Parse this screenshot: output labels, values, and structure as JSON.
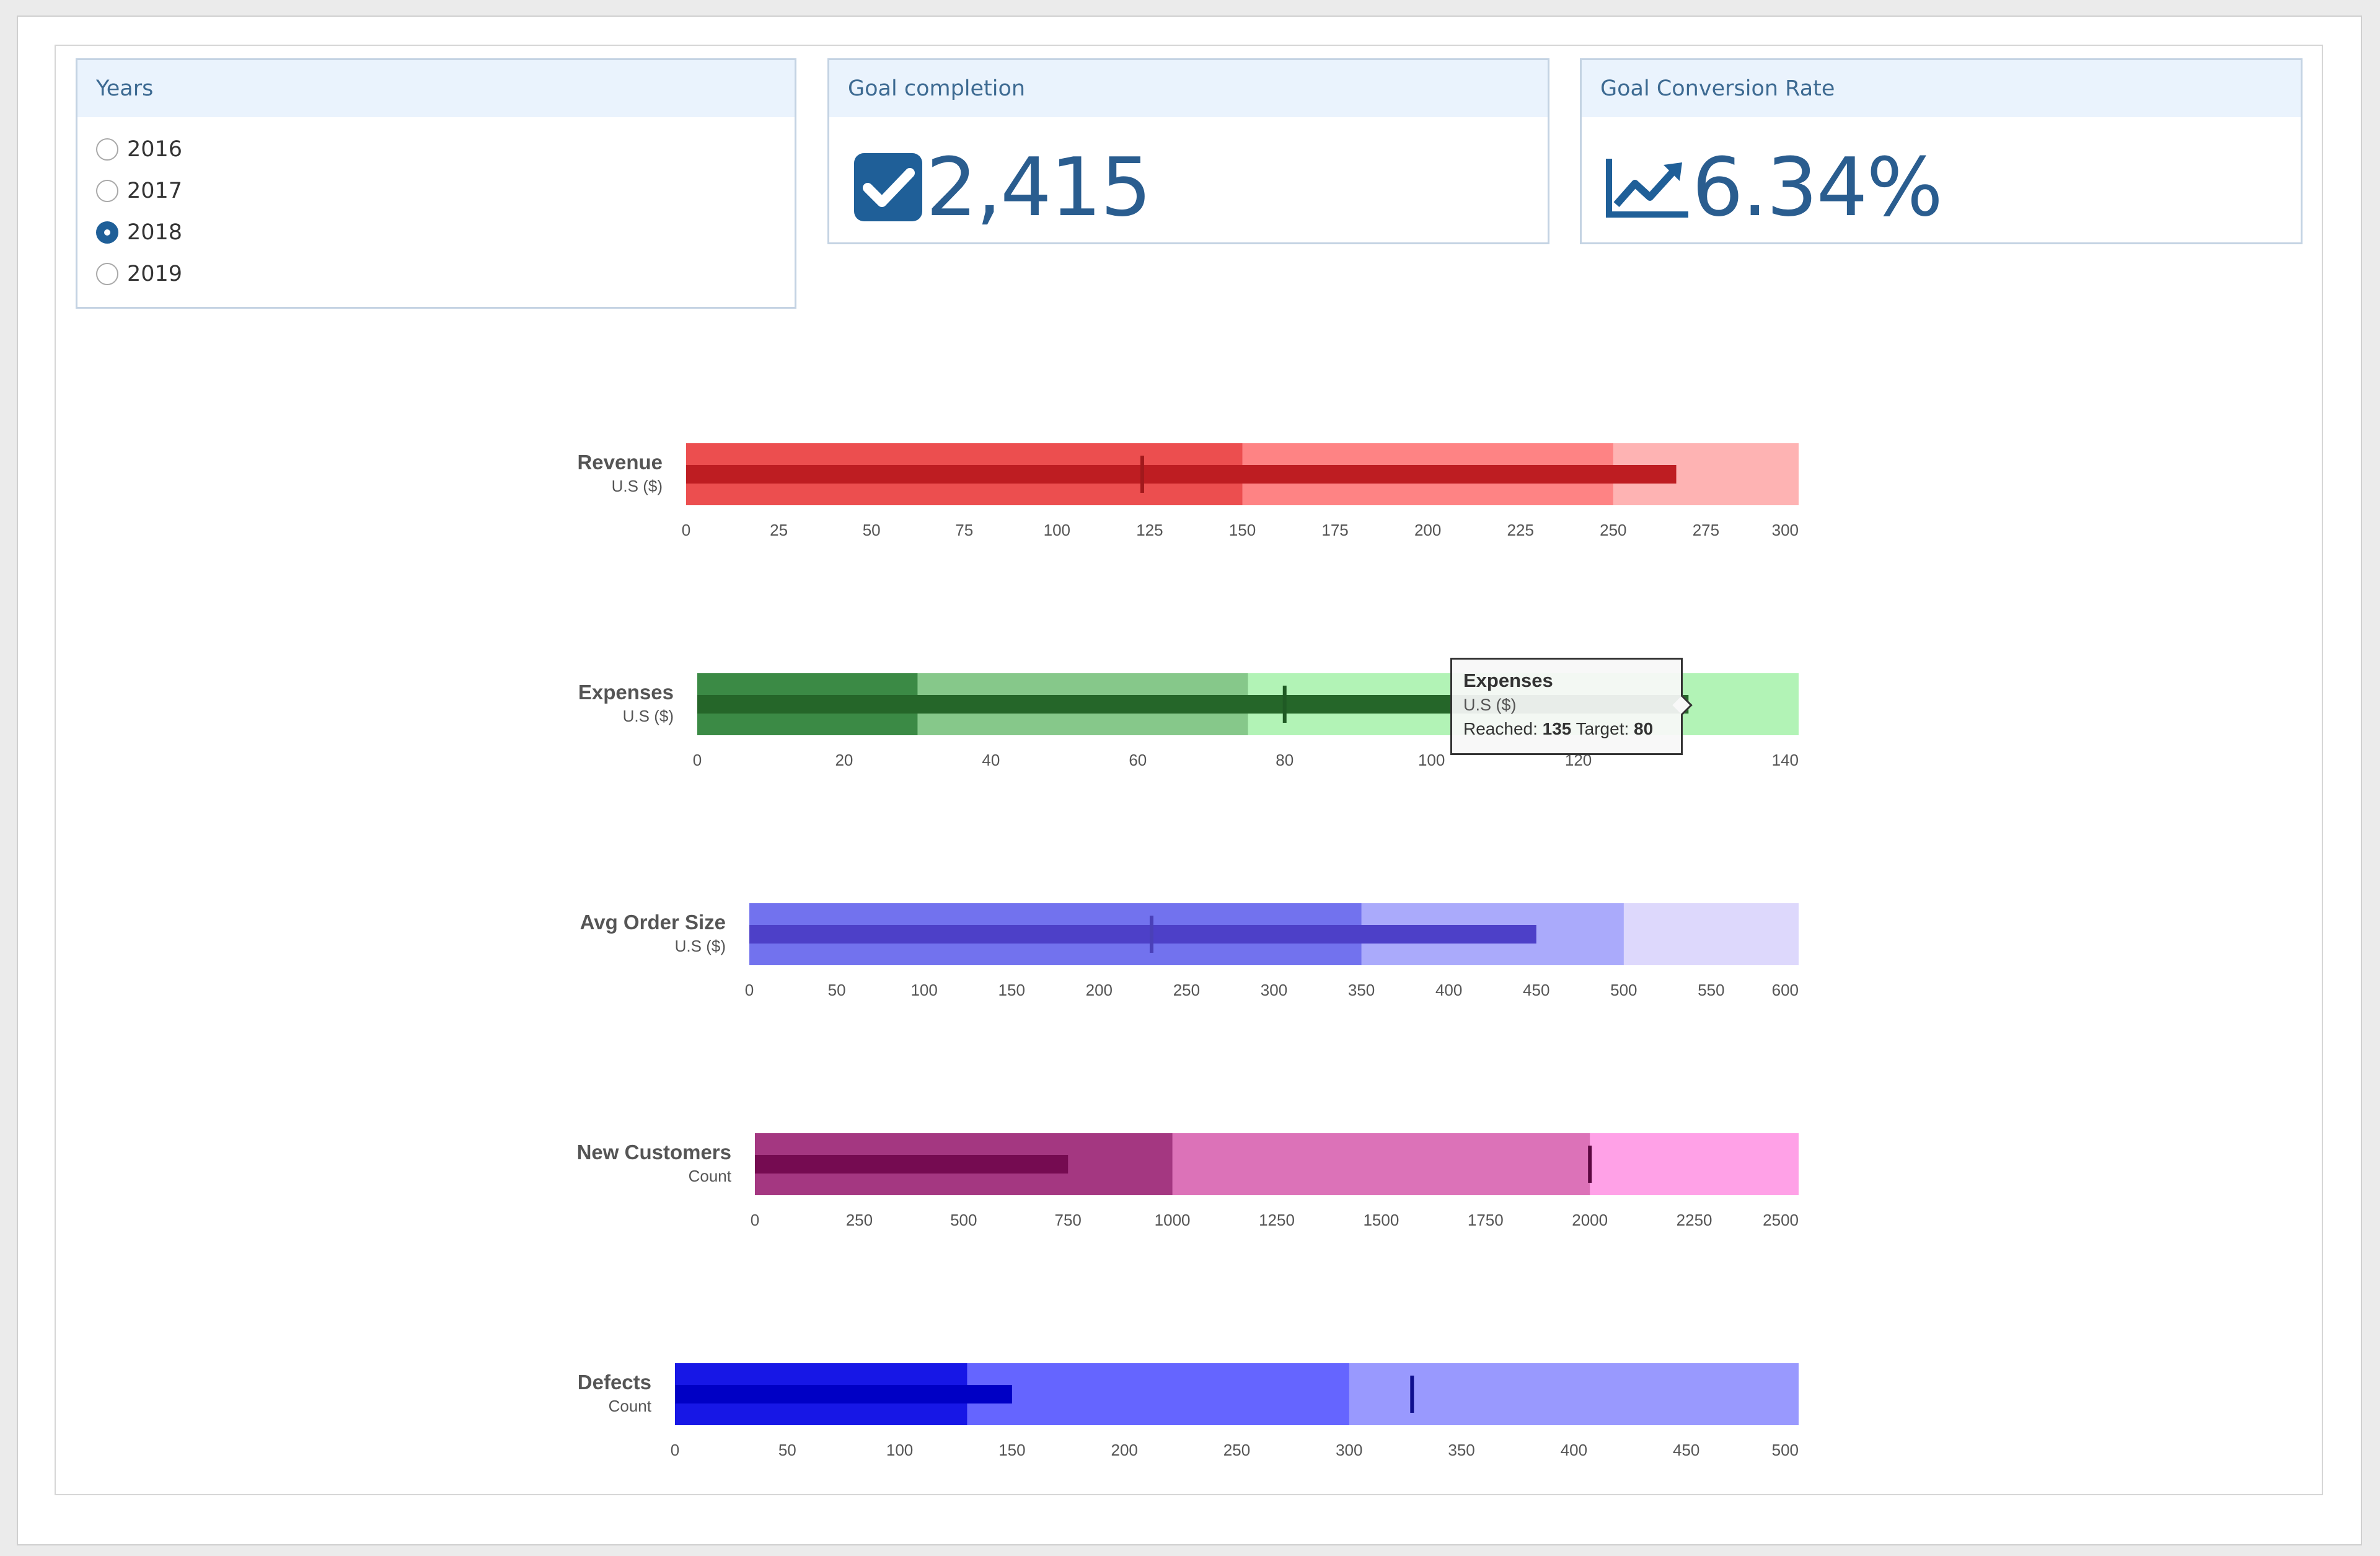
{
  "years_filter": {
    "title": "Years",
    "options": [
      "2016",
      "2017",
      "2018",
      "2019"
    ],
    "selected": "2018"
  },
  "goal_completion": {
    "title": "Goal completion",
    "value": "2,415",
    "icon": "checkbox-checked-icon"
  },
  "goal_conversion": {
    "title": "Goal Conversion Rate",
    "value": "6.34%",
    "icon": "line-chart-up-icon"
  },
  "tooltip": {
    "title": "Expenses",
    "subtitle": "U.S ($)",
    "reached_label": "Reached:",
    "reached_value": "135",
    "target_label": "Target:",
    "target_value": "80"
  },
  "chart_data": [
    {
      "type": "bullet",
      "title": "Revenue",
      "subtitle": "U.S ($)",
      "ranges": [
        150,
        250,
        300
      ],
      "value": 267,
      "target": 123,
      "axis": {
        "min": 0,
        "max": 300,
        "ticks": [
          0,
          25,
          50,
          75,
          100,
          125,
          150,
          175,
          200,
          225,
          250,
          275,
          300
        ]
      },
      "colors": {
        "ranges": [
          "#ec4e4f",
          "#fe8384",
          "#feb3b3"
        ],
        "value": "#be1d22",
        "target": "#a1191c"
      }
    },
    {
      "type": "bullet",
      "title": "Expenses",
      "subtitle": "U.S ($)",
      "ranges": [
        30,
        75,
        150
      ],
      "value": 135,
      "target": 80,
      "axis": {
        "min": 0,
        "max": 150,
        "ticks": [
          0,
          20,
          40,
          60,
          80,
          100,
          120,
          140
        ]
      },
      "colors": {
        "ranges": [
          "#3b8a45",
          "#86c88a",
          "#b2f3b6"
        ],
        "value": "#256629",
        "target": "#1f5a24"
      }
    },
    {
      "type": "bullet",
      "title": "Avg Order Size",
      "subtitle": "U.S ($)",
      "ranges": [
        350,
        500,
        600
      ],
      "value": 450,
      "target": 230,
      "axis": {
        "min": 0,
        "max": 600,
        "ticks": [
          0,
          50,
          100,
          150,
          200,
          250,
          300,
          350,
          400,
          450,
          500,
          550,
          600
        ]
      },
      "colors": {
        "ranges": [
          "#7272ee",
          "#aaaafb",
          "#ddd8fc"
        ],
        "value": "#4d40c8",
        "target": "#4a40b8"
      }
    },
    {
      "type": "bullet",
      "title": "New Customers",
      "subtitle": "Count",
      "ranges": [
        1000,
        2000,
        2500
      ],
      "value": 750,
      "target": 2000,
      "axis": {
        "min": 0,
        "max": 2500,
        "ticks": [
          0,
          250,
          500,
          750,
          1000,
          1250,
          1500,
          1750,
          2000,
          2250,
          2500
        ]
      },
      "colors": {
        "ranges": [
          "#a43781",
          "#dc72b8",
          "#ffa1e7"
        ],
        "value": "#750b51",
        "target": "#5b0740"
      }
    },
    {
      "type": "bullet",
      "title": "Defects",
      "subtitle": "Count",
      "ranges": [
        130,
        300,
        500
      ],
      "value": 150,
      "target": 328,
      "axis": {
        "min": 0,
        "max": 500,
        "ticks": [
          0,
          50,
          100,
          150,
          200,
          250,
          300,
          350,
          400,
          450,
          500
        ]
      },
      "colors": {
        "ranges": [
          "#1717e6",
          "#6565ff",
          "#9999fe"
        ],
        "value": "#0000c5",
        "target": "#0f0f8d"
      }
    }
  ]
}
